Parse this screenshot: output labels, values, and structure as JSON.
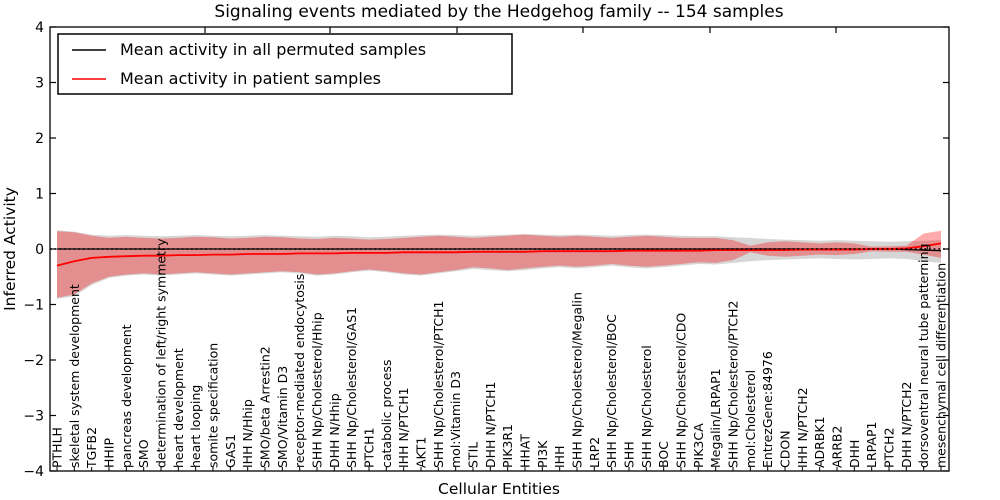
{
  "figure": {
    "kind": "matplotlib-style line chart with confidence bands"
  },
  "chart_data": {
    "type": "line",
    "title": "Signaling events mediated by the Hedgehog family -- 154 samples",
    "xlabel": "Cellular Entities",
    "ylabel": "Inferred Activity",
    "ylim": [
      -4,
      4
    ],
    "yticks": [
      -4,
      -3,
      -2,
      -1,
      0,
      1,
      2,
      3,
      4
    ],
    "grid": false,
    "zero_line": 0,
    "legend_position": "upper left",
    "colors": {
      "permuted_line": "#000000",
      "patient_line": "#ff0000",
      "permuted_band": "rgba(0,0,0,0.16)",
      "patient_band": "rgba(255,0,0,0.33)",
      "frame": "#000000",
      "background": "#ffffff"
    },
    "categories": [
      "PTHLH",
      "skeletal system development",
      "TGFB2",
      "HHIP",
      "pancreas development",
      "SMO",
      "determination of left/right symmetry",
      "heart development",
      "heart looping",
      "somite specification",
      "GAS1",
      "IHH N/Hhip",
      "SMO/beta Arrestin2",
      "SMO/Vitamin D3",
      "receptor-mediated endocytosis",
      "SHH Np/Cholesterol/Hhip",
      "DHH N/Hhip",
      "SHH Np/Cholesterol/GAS1",
      "PTCH1",
      "catabolic process",
      "IHH N/PTCH1",
      "AKT1",
      "SHH Np/Cholesterol/PTCH1",
      "mol:Vitamin D3",
      "STIL",
      "DHH N/PTCH1",
      "PIK3R1",
      "HHAT",
      "PI3K",
      "IHH",
      "SHH Np/Cholesterol/Megalin",
      "LRP2",
      "SHH Np/Cholesterol/BOC",
      "SHH",
      "SHH Np/Cholesterol",
      "BOC",
      "SHH Np/Cholesterol/CDO",
      "PIK3CA",
      "Megalin/LRPAP1",
      "SHH Np/Cholesterol/PTCH2",
      "mol:Cholesterol",
      "EntrezGene:84976",
      "CDON",
      "IHH N/PTCH2",
      "ADRBK1",
      "ARRB2",
      "DHH",
      "LRPAP1",
      "PTCH2",
      "DHH N/PTCH2",
      "dorsoventral neural tube patterning",
      "mesenchymal cell differentiation"
    ],
    "series": [
      {
        "name": "Mean activity in all permuted samples",
        "color": "#000000",
        "values": [
          0,
          0,
          0,
          0,
          0,
          0,
          0,
          0,
          0,
          0,
          0,
          0,
          0,
          0,
          0,
          0,
          0,
          0,
          0,
          0,
          0,
          0,
          0,
          0,
          0,
          0,
          0,
          0,
          0,
          0,
          0,
          0,
          0,
          0,
          0,
          0,
          0,
          0,
          0,
          0,
          0,
          0,
          0,
          0,
          0,
          0,
          0,
          0,
          0,
          -0.01,
          -0.02,
          -0.03
        ]
      },
      {
        "name": "Mean activity in patient samples",
        "color": "#ff0000",
        "values": [
          -0.3,
          -0.22,
          -0.16,
          -0.14,
          -0.13,
          -0.12,
          -0.12,
          -0.11,
          -0.11,
          -0.1,
          -0.1,
          -0.09,
          -0.09,
          -0.09,
          -0.08,
          -0.08,
          -0.08,
          -0.07,
          -0.07,
          -0.07,
          -0.06,
          -0.06,
          -0.06,
          -0.06,
          -0.05,
          -0.05,
          -0.05,
          -0.05,
          -0.04,
          -0.04,
          -0.04,
          -0.04,
          -0.04,
          -0.03,
          -0.03,
          -0.03,
          -0.03,
          -0.03,
          -0.02,
          -0.02,
          -0.02,
          -0.02,
          -0.02,
          -0.01,
          -0.01,
          -0.01,
          -0.01,
          0.0,
          0.0,
          0.01,
          0.05,
          0.1
        ]
      }
    ],
    "bands": [
      {
        "name": "permuted samples range",
        "color": "rgba(0,0,0,0.16)",
        "hi": [
          0.34,
          0.31,
          0.26,
          0.24,
          0.25,
          0.24,
          0.23,
          0.24,
          0.25,
          0.24,
          0.23,
          0.24,
          0.25,
          0.24,
          0.23,
          0.22,
          0.24,
          0.23,
          0.21,
          0.22,
          0.24,
          0.25,
          0.26,
          0.25,
          0.24,
          0.25,
          0.26,
          0.27,
          0.26,
          0.25,
          0.26,
          0.25,
          0.24,
          0.25,
          0.26,
          0.25,
          0.24,
          0.23,
          0.23,
          0.21,
          0.2,
          0.18,
          0.17,
          0.16,
          0.15,
          0.16,
          0.15,
          0.14,
          0.13,
          0.14,
          0.15,
          0.16
        ],
        "lo": [
          -0.9,
          -0.85,
          -0.65,
          -0.52,
          -0.48,
          -0.46,
          -0.48,
          -0.46,
          -0.44,
          -0.46,
          -0.48,
          -0.46,
          -0.44,
          -0.42,
          -0.44,
          -0.48,
          -0.46,
          -0.42,
          -0.39,
          -0.42,
          -0.46,
          -0.48,
          -0.44,
          -0.4,
          -0.36,
          -0.38,
          -0.4,
          -0.38,
          -0.35,
          -0.33,
          -0.35,
          -0.33,
          -0.3,
          -0.33,
          -0.35,
          -0.33,
          -0.3,
          -0.27,
          -0.28,
          -0.25,
          -0.22,
          -0.2,
          -0.19,
          -0.18,
          -0.17,
          -0.18,
          -0.19,
          -0.18,
          -0.17,
          -0.18,
          -0.22,
          -0.25
        ]
      },
      {
        "name": "patient samples range",
        "color": "rgba(255,0,0,0.33)",
        "hi": [
          0.32,
          0.3,
          0.24,
          0.2,
          0.22,
          0.2,
          0.19,
          0.2,
          0.22,
          0.21,
          0.19,
          0.2,
          0.22,
          0.21,
          0.19,
          0.18,
          0.2,
          0.19,
          0.17,
          0.18,
          0.2,
          0.22,
          0.24,
          0.22,
          0.2,
          0.22,
          0.24,
          0.26,
          0.24,
          0.22,
          0.24,
          0.22,
          0.2,
          0.22,
          0.24,
          0.22,
          0.2,
          0.2,
          0.2,
          0.16,
          0.06,
          0.12,
          0.14,
          0.12,
          0.1,
          0.12,
          0.1,
          0.04,
          0.05,
          0.06,
          0.28,
          0.33
        ],
        "lo": [
          -0.88,
          -0.82,
          -0.62,
          -0.5,
          -0.46,
          -0.44,
          -0.46,
          -0.44,
          -0.42,
          -0.44,
          -0.46,
          -0.44,
          -0.42,
          -0.4,
          -0.42,
          -0.46,
          -0.44,
          -0.4,
          -0.37,
          -0.4,
          -0.44,
          -0.46,
          -0.42,
          -0.38,
          -0.33,
          -0.35,
          -0.38,
          -0.35,
          -0.32,
          -0.3,
          -0.32,
          -0.3,
          -0.27,
          -0.3,
          -0.32,
          -0.3,
          -0.27,
          -0.24,
          -0.25,
          -0.2,
          -0.06,
          -0.12,
          -0.14,
          -0.12,
          -0.1,
          -0.11,
          -0.09,
          -0.04,
          -0.05,
          -0.05,
          -0.1,
          -0.16
        ]
      }
    ],
    "layout": {
      "top_ticks_x": [
        205,
        330,
        457,
        583,
        710,
        836
      ]
    }
  }
}
